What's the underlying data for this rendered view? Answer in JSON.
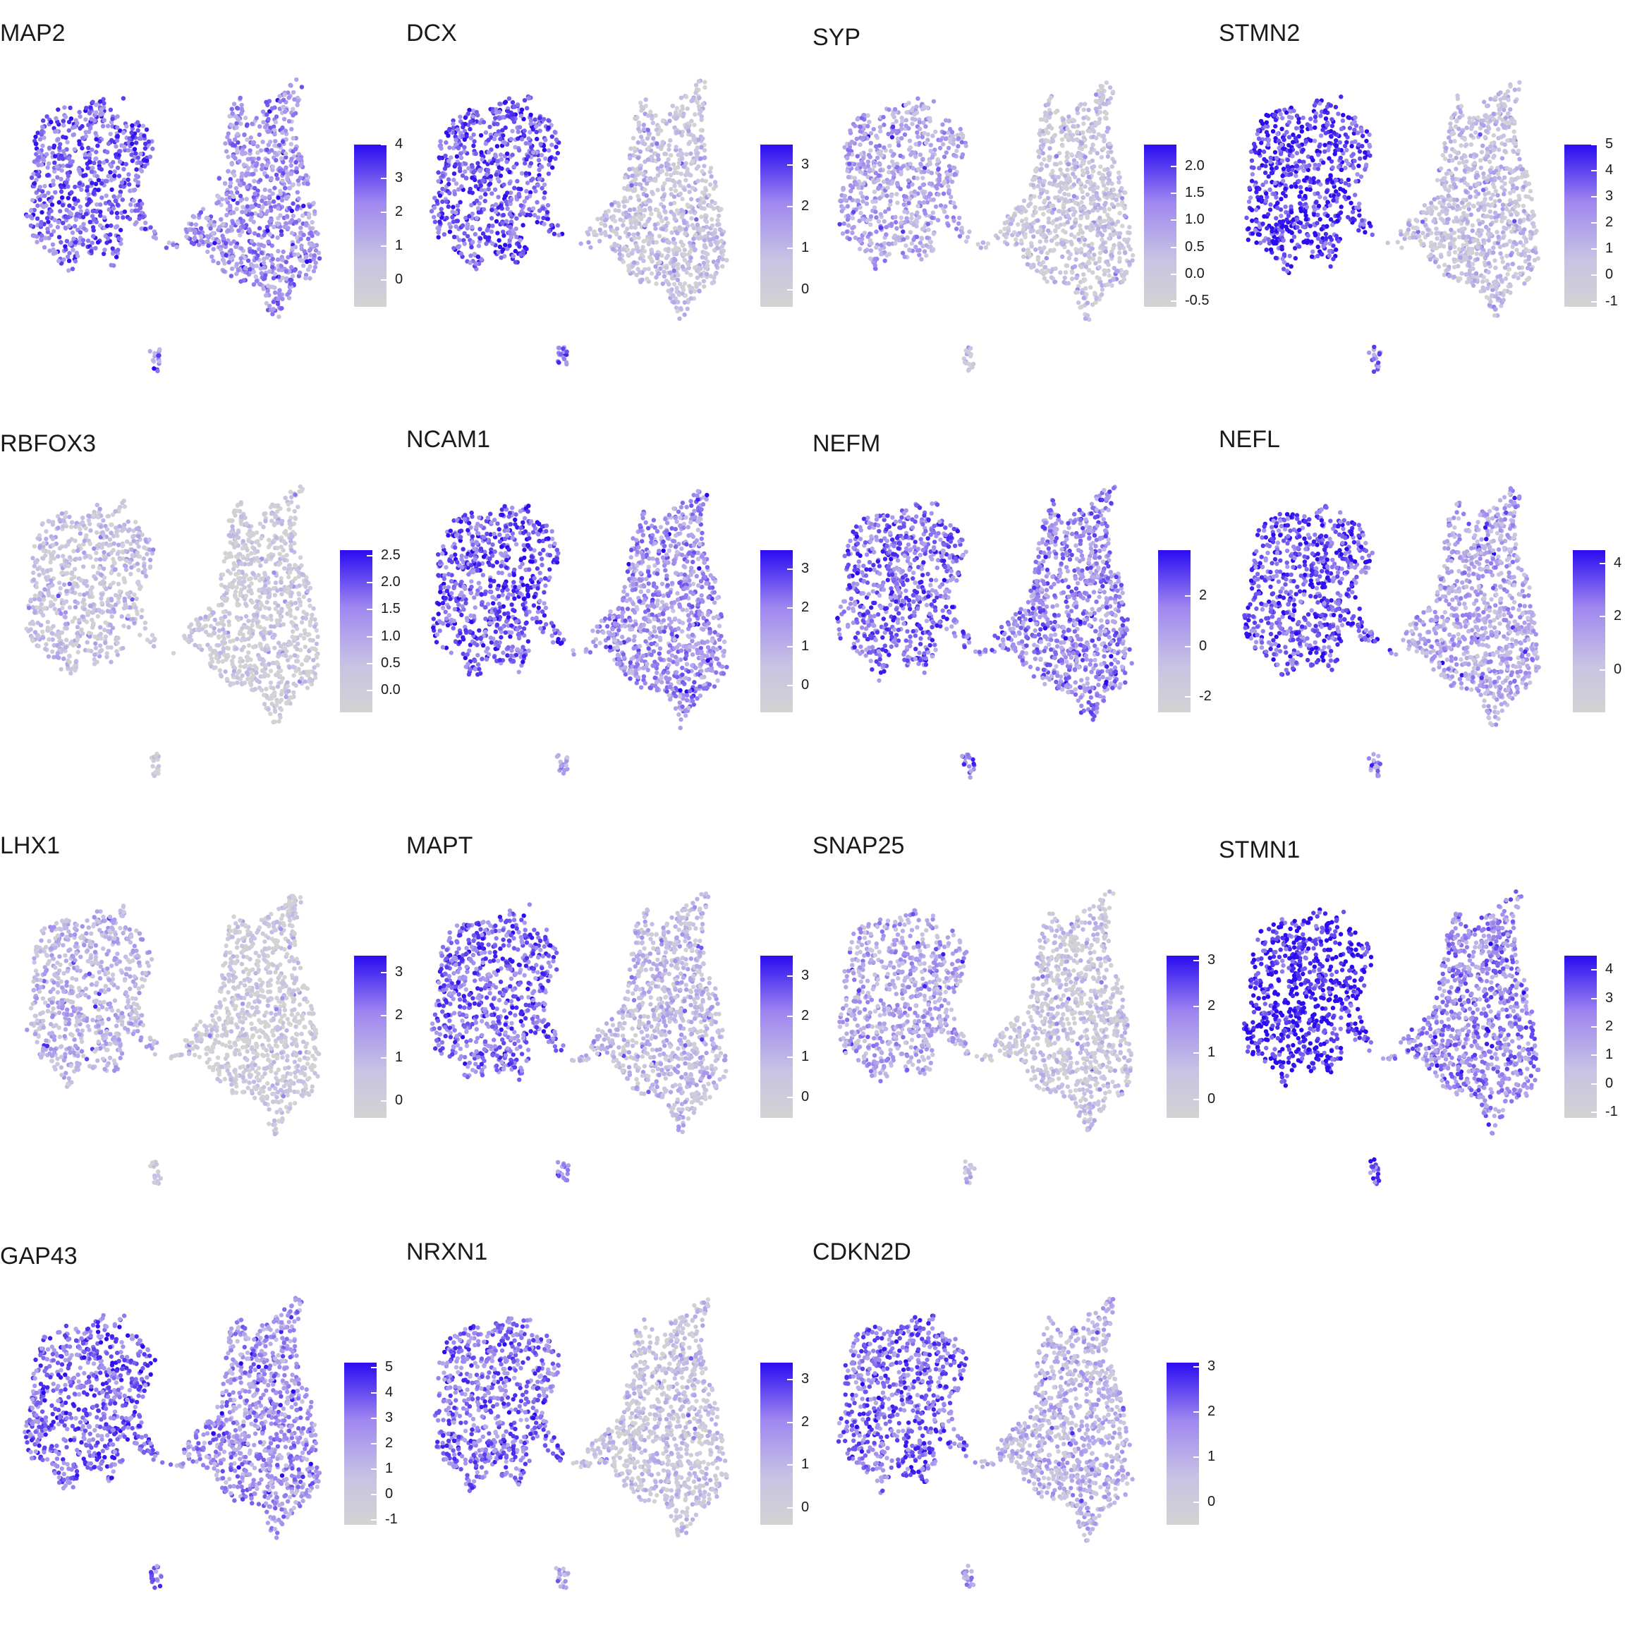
{
  "chart_data": [
    {
      "type": "scatter",
      "title": "MAP2",
      "expression": {
        "left_cluster": 0.72,
        "right_cluster": 0.55,
        "small_cluster": 0.6
      },
      "colorbar": {
        "ticks": [
          "0",
          "1",
          "2",
          "3",
          "4"
        ],
        "min": -0.8,
        "max": 4.0
      }
    },
    {
      "type": "scatter",
      "title": "DCX",
      "expression": {
        "left_cluster": 0.75,
        "right_cluster": 0.22,
        "small_cluster": 0.7
      },
      "colorbar": {
        "ticks": [
          "0",
          "1",
          "2",
          "3"
        ],
        "min": -0.4,
        "max": 3.5
      }
    },
    {
      "type": "scatter",
      "title": "SYP",
      "expression": {
        "left_cluster": 0.45,
        "right_cluster": 0.2,
        "small_cluster": 0.3
      },
      "colorbar": {
        "ticks": [
          "-0.5",
          "0.0",
          "0.5",
          "1.0",
          "1.5",
          "2.0"
        ],
        "min": -0.6,
        "max": 2.4
      }
    },
    {
      "type": "scatter",
      "title": "STMN2",
      "expression": {
        "left_cluster": 0.85,
        "right_cluster": 0.25,
        "small_cluster": 0.6
      },
      "colorbar": {
        "ticks": [
          "-1",
          "0",
          "1",
          "2",
          "3",
          "4",
          "5"
        ],
        "min": -1.2,
        "max": 5.0
      }
    },
    {
      "type": "scatter",
      "title": "RBFOX3",
      "expression": {
        "left_cluster": 0.25,
        "right_cluster": 0.12,
        "small_cluster": 0.15
      },
      "colorbar": {
        "ticks": [
          "0.0",
          "0.5",
          "1.0",
          "1.5",
          "2.0",
          "2.5"
        ],
        "min": -0.4,
        "max": 2.6
      }
    },
    {
      "type": "scatter",
      "title": "NCAM1",
      "expression": {
        "left_cluster": 0.75,
        "right_cluster": 0.55,
        "small_cluster": 0.5
      },
      "colorbar": {
        "ticks": [
          "0",
          "1",
          "2",
          "3"
        ],
        "min": -0.7,
        "max": 3.5
      }
    },
    {
      "type": "scatter",
      "title": "NEFM",
      "expression": {
        "left_cluster": 0.7,
        "right_cluster": 0.6,
        "small_cluster": 0.7
      },
      "colorbar": {
        "ticks": [
          "-2",
          "0",
          "2"
        ],
        "min": -2.6,
        "max": 3.8
      }
    },
    {
      "type": "scatter",
      "title": "NEFL",
      "expression": {
        "left_cluster": 0.78,
        "right_cluster": 0.45,
        "small_cluster": 0.55
      },
      "colorbar": {
        "ticks": [
          "0",
          "2",
          "4"
        ],
        "min": -1.6,
        "max": 4.5
      }
    },
    {
      "type": "scatter",
      "title": "LHX1",
      "expression": {
        "left_cluster": 0.35,
        "right_cluster": 0.12,
        "small_cluster": 0.15
      },
      "colorbar": {
        "ticks": [
          "0",
          "1",
          "2",
          "3"
        ],
        "min": -0.4,
        "max": 3.4
      }
    },
    {
      "type": "scatter",
      "title": "MAPT",
      "expression": {
        "left_cluster": 0.72,
        "right_cluster": 0.3,
        "small_cluster": 0.6
      },
      "colorbar": {
        "ticks": [
          "0",
          "1",
          "2",
          "3"
        ],
        "min": -0.5,
        "max": 3.5
      }
    },
    {
      "type": "scatter",
      "title": "SNAP25",
      "expression": {
        "left_cluster": 0.45,
        "right_cluster": 0.2,
        "small_cluster": 0.3
      },
      "colorbar": {
        "ticks": [
          "0",
          "1",
          "2",
          "3"
        ],
        "min": -0.4,
        "max": 3.1
      }
    },
    {
      "type": "scatter",
      "title": "STMN1",
      "expression": {
        "left_cluster": 0.92,
        "right_cluster": 0.6,
        "small_cluster": 0.75
      },
      "colorbar": {
        "ticks": [
          "-1",
          "0",
          "1",
          "2",
          "3",
          "4"
        ],
        "min": -1.2,
        "max": 4.5
      }
    },
    {
      "type": "scatter",
      "title": "GAP43",
      "expression": {
        "left_cluster": 0.72,
        "right_cluster": 0.55,
        "small_cluster": 0.65
      },
      "colorbar": {
        "ticks": [
          "-1",
          "0",
          "1",
          "2",
          "3",
          "4",
          "5"
        ],
        "min": -1.2,
        "max": 5.2
      }
    },
    {
      "type": "scatter",
      "title": "NRXN1",
      "expression": {
        "left_cluster": 0.68,
        "right_cluster": 0.22,
        "small_cluster": 0.4
      },
      "colorbar": {
        "ticks": [
          "0",
          "1",
          "2",
          "3"
        ],
        "min": -0.4,
        "max": 3.4
      }
    },
    {
      "type": "scatter",
      "title": "CDKN2D",
      "expression": {
        "left_cluster": 0.7,
        "right_cluster": 0.35,
        "small_cluster": 0.55
      },
      "colorbar": {
        "ticks": [
          "0",
          "1",
          "2",
          "3"
        ],
        "min": -0.5,
        "max": 3.1
      }
    }
  ]
}
